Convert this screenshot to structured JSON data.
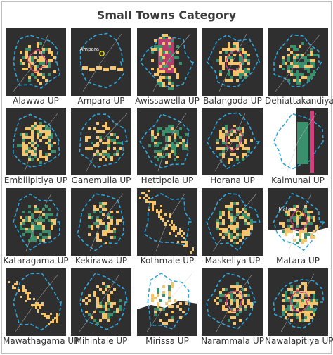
{
  "title": "Small Towns Category",
  "colors": {
    "background": "#2f2f2f",
    "built_up": "#f6c56b",
    "vegetation": "#3a8f6c",
    "boundary_dash": "#2ea6dd",
    "road": "#cfcfcf",
    "highlight": "#d0407a",
    "water": "#ffffff",
    "marker": "#f2e500"
  },
  "towns": [
    {
      "name": "Alawwa UP",
      "shape": "star"
    },
    {
      "name": "Ampara UP",
      "shape": "strip",
      "marker_label": "Ampara"
    },
    {
      "name": "Awissawella UP",
      "shape": "vertical"
    },
    {
      "name": "Balangoda UP",
      "shape": "blob"
    },
    {
      "name": "Dehiattakandiya UP",
      "shape": "greenblob"
    },
    {
      "name": "Embilipitiya UP",
      "shape": "yellowblob"
    },
    {
      "name": "Ganemulla UP",
      "shape": "cluster"
    },
    {
      "name": "Hettipola UP",
      "shape": "greenblob"
    },
    {
      "name": "Horana UP",
      "shape": "star"
    },
    {
      "name": "Kalmunai UP",
      "shape": "coast"
    },
    {
      "name": "Kataragama UP",
      "shape": "greenblob"
    },
    {
      "name": "Kekirawa UP",
      "shape": "cluster"
    },
    {
      "name": "Kothmale UP",
      "shape": "diagonal"
    },
    {
      "name": "Maskeliya UP",
      "shape": "yellowblob"
    },
    {
      "name": "Matara UP",
      "shape": "coastmarker",
      "marker_label": "Matara"
    },
    {
      "name": "Mawathagama UP",
      "shape": "diagonal2"
    },
    {
      "name": "Mihintale UP",
      "shape": "cluster"
    },
    {
      "name": "Mirissa UP",
      "shape": "sea"
    },
    {
      "name": "Narammala UP",
      "shape": "patchy"
    },
    {
      "name": "Nawalapitiya UP",
      "shape": "dense"
    }
  ]
}
